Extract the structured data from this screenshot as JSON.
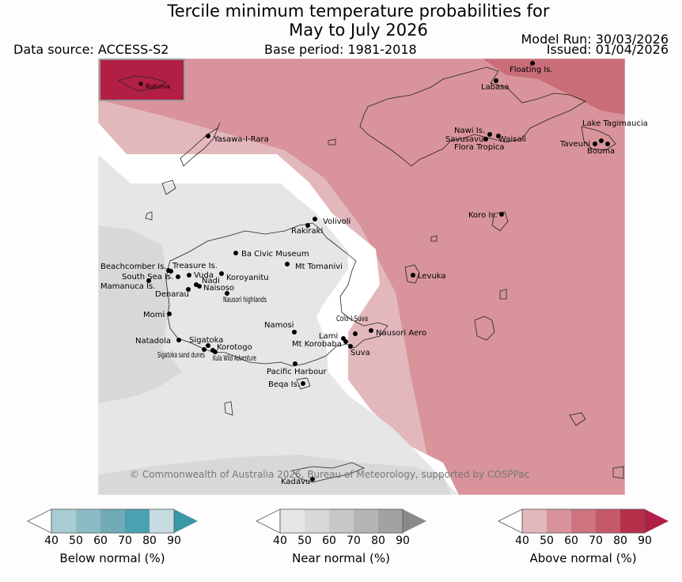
{
  "title": {
    "line1": "Tercile minimum temperature probabilities for",
    "line2": "May to July 2026"
  },
  "header": {
    "data_source": "Data source: ACCESS-S2",
    "base_period": "Base period: 1981-2018",
    "model_run": "Model Run: 30/03/2026",
    "issued": "Issued: 01/04/2026"
  },
  "inset_label": "Rotuma",
  "copyright": "© Commonwealth of Australia 2026, Bureau of Meteorology, supported by COSPPac",
  "places": [
    {
      "name": "Floating Is."
    },
    {
      "name": "Labasa"
    },
    {
      "name": "Yasawa-I-Rara"
    },
    {
      "name": "Nawi Is."
    },
    {
      "name": "Savusavu"
    },
    {
      "name": "Waisali"
    },
    {
      "name": "Flora Tropica"
    },
    {
      "name": "Lake Tagimaucia"
    },
    {
      "name": "Taveuni"
    },
    {
      "name": "Bouma"
    },
    {
      "name": "Koro Is."
    },
    {
      "name": "Volivoli"
    },
    {
      "name": "Rakiraki"
    },
    {
      "name": "Ba Civic Museum"
    },
    {
      "name": "Mt Tomanivi"
    },
    {
      "name": "Beachcomber Is."
    },
    {
      "name": "Treasure Is."
    },
    {
      "name": "South Sea Is."
    },
    {
      "name": "Vuda"
    },
    {
      "name": "Koroyanitu"
    },
    {
      "name": "Mamanuca Is."
    },
    {
      "name": "Nadi"
    },
    {
      "name": "Naisoso"
    },
    {
      "name": "Denarau"
    },
    {
      "name": "Levuka"
    },
    {
      "name": "Nausori highlands"
    },
    {
      "name": "Momi"
    },
    {
      "name": "Namosi"
    },
    {
      "name": "Colo-I-Suva"
    },
    {
      "name": "Nausori Aero"
    },
    {
      "name": "Lami"
    },
    {
      "name": "Mt Korobaba"
    },
    {
      "name": "Suva"
    },
    {
      "name": "Natadola"
    },
    {
      "name": "Sigatoka"
    },
    {
      "name": "Korotogo"
    },
    {
      "name": "Sigatoka sand dunes"
    },
    {
      "name": "Kula Wild Adventure"
    },
    {
      "name": "Pacific Harbour"
    },
    {
      "name": "Beqa Is."
    },
    {
      "name": "Kadavu"
    }
  ],
  "legend": {
    "ticks": [
      "40",
      "50",
      "60",
      "70",
      "80",
      "90"
    ],
    "below": {
      "label": "Below normal (%)",
      "colors": [
        "#c5dce2",
        "#a9cbd3",
        "#8dbbc4",
        "#70abb6",
        "#4aa1b0",
        "#3a97a7"
      ]
    },
    "near": {
      "label": "Near normal (%)",
      "colors": [
        "#e6e6e6",
        "#d8d8d8",
        "#c8c8c8",
        "#b5b5b5",
        "#a2a2a2",
        "#8a8a8a"
      ]
    },
    "above": {
      "label": "Above normal (%)",
      "colors": [
        "#e2b8bd",
        "#d8949a",
        "#cd747e",
        "#c45a69",
        "#b6304b",
        "#b21f45"
      ]
    }
  }
}
